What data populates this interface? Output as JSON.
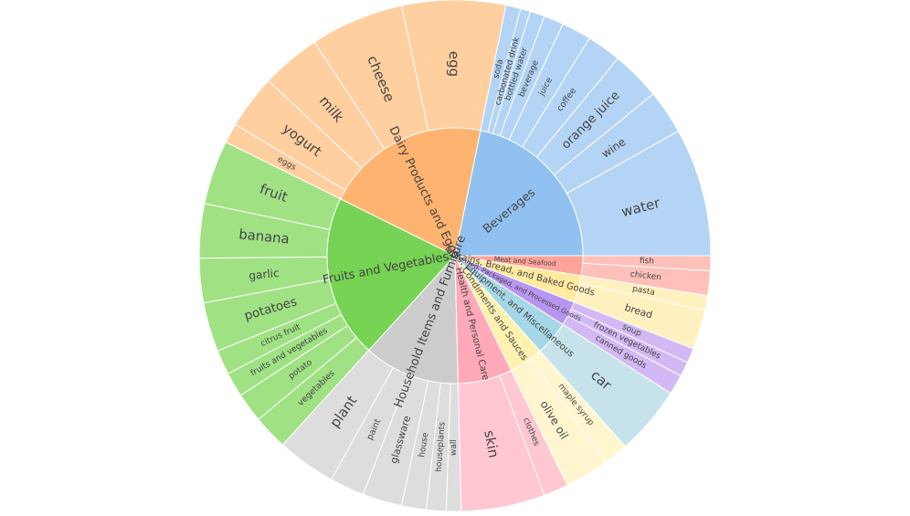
{
  "chart_data": {
    "type": "sunburst",
    "colors": {
      "Beverages": [
        "#91c1f1",
        "#b4d4f5"
      ],
      "Meat and Seafood": [
        "#ffa39a",
        "#ffc0b9"
      ],
      "Grains, Bread, and Baked Goods": [
        "#ffea9f",
        "#fff1bf"
      ],
      "Canned, Packaged, and Processed Goods": [
        "#b895f0",
        "#d2b9f5"
      ],
      "Tools, Equipment, and Miscellaneous": [
        "#a6d7e6",
        "#c6e3ec"
      ],
      "Condiments and Sauces": [
        "#fff1b0",
        "#fff6cf"
      ],
      "Health and Personal Care": [
        "#ffa9b9",
        "#ffc7d2"
      ],
      "Household Items and Furniture": [
        "#cccccc",
        "#dddddd"
      ],
      "Fruits and Vegetables": [
        "#76d353",
        "#a0e184"
      ],
      "Dairy Products and Eggs": [
        "#ffb370",
        "#ffcfa0"
      ]
    },
    "categories": [
      {
        "name": "Beverages",
        "children": [
          {
            "name": "water",
            "value": 26
          },
          {
            "name": "wine",
            "value": 9
          },
          {
            "name": "orange juice",
            "value": 10
          },
          {
            "name": "coffee",
            "value": 7
          },
          {
            "name": "juice",
            "value": 6
          },
          {
            "name": "beverage",
            "value": 4
          },
          {
            "name": "bottled water",
            "value": 3
          },
          {
            "name": "carbonated drink",
            "value": 2
          },
          {
            "name": "soda",
            "value": 3
          }
        ]
      },
      {
        "name": "Dairy Products and Eggs",
        "children": [
          {
            "name": "egg",
            "value": 21
          },
          {
            "name": "cheese",
            "value": 19
          },
          {
            "name": "milk",
            "value": 12
          },
          {
            "name": "yogurt",
            "value": 11
          },
          {
            "name": "eggs",
            "value": 4
          }
        ]
      },
      {
        "name": "Fruits and Vegetables",
        "children": [
          {
            "name": "fruit",
            "value": 13
          },
          {
            "name": "banana",
            "value": 11
          },
          {
            "name": "garlic",
            "value": 9
          },
          {
            "name": "potatoes",
            "value": 10
          },
          {
            "name": "citrus fruit",
            "value": 5
          },
          {
            "name": "fruits and vegetables",
            "value": 5
          },
          {
            "name": "potato",
            "value": 6
          },
          {
            "name": "vegetables",
            "value": 7
          }
        ]
      },
      {
        "name": "Household Items and Furniture",
        "children": [
          {
            "name": "plant",
            "value": 12
          },
          {
            "name": "paint",
            "value": 7
          },
          {
            "name": "glassware",
            "value": 8
          },
          {
            "name": "house",
            "value": 5
          },
          {
            "name": "houseplants",
            "value": 4
          },
          {
            "name": "wall",
            "value": 3
          }
        ]
      },
      {
        "name": "Health and Personal Care",
        "children": [
          {
            "name": "skin",
            "value": 17
          },
          {
            "name": "clothes",
            "value": 5
          }
        ]
      },
      {
        "name": "Condiments and Sauces",
        "children": [
          {
            "name": "olive oil",
            "value": 9
          },
          {
            "name": "maple syrup",
            "value": 5
          }
        ]
      },
      {
        "name": "Tools, Equipment, and Miscellaneous",
        "children": [
          {
            "name": "car",
            "value": 14
          }
        ]
      },
      {
        "name": "Canned, Packaged, and Processed Goods",
        "children": [
          {
            "name": "canned goods",
            "value": 4
          },
          {
            "name": "frozen vegetables",
            "value": 3
          },
          {
            "name": "soup",
            "value": 3
          }
        ]
      },
      {
        "name": "Grains, Bread, and Baked Goods",
        "children": [
          {
            "name": "bread",
            "value": 8
          },
          {
            "name": "pasta",
            "value": 3
          }
        ]
      },
      {
        "name": "Meat and Seafood",
        "children": [
          {
            "name": "chicken",
            "value": 5
          },
          {
            "name": "fish",
            "value": 3
          }
        ]
      }
    ]
  }
}
